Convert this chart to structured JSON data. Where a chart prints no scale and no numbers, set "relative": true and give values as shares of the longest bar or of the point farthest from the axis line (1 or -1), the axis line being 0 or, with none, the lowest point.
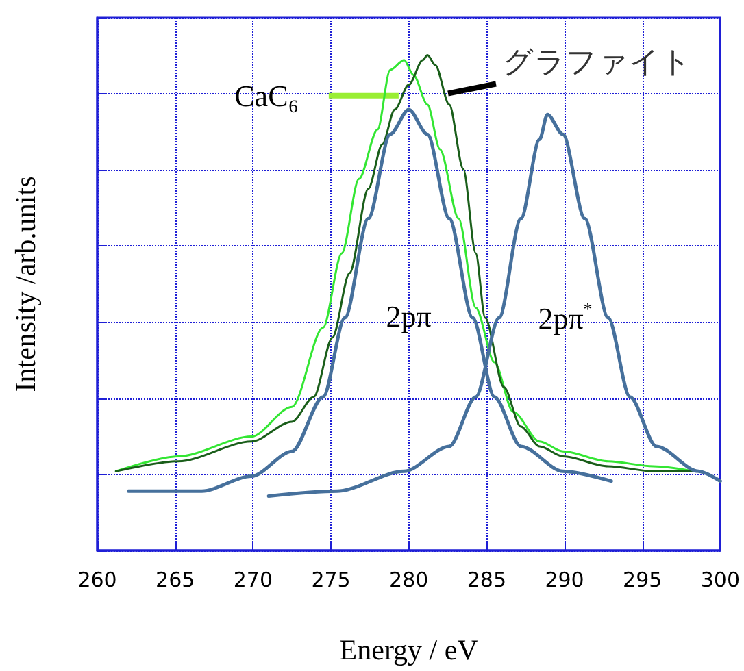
{
  "chart_data": {
    "type": "line",
    "xlabel": "Energy / eV",
    "ylabel": "Intensity /arb.units",
    "relative": true,
    "xlim": [
      260,
      300
    ],
    "xticks": [
      260,
      265,
      270,
      275,
      280,
      285,
      290,
      295,
      300
    ],
    "grid": true,
    "legend": false,
    "marker": "none",
    "series": [
      {
        "name": "CaC₆",
        "color": "#33e633",
        "x": [
          261.2,
          265.2,
          269.9,
          272.5,
          274.5,
          275.7,
          276.8,
          278.0,
          278.8,
          279.7,
          280.3,
          281.2,
          282.0,
          283.2,
          284.3,
          285.5,
          286.7,
          288.4,
          289.9,
          292.8,
          295.7,
          298.3
        ],
        "values": [
          0.16,
          0.19,
          0.23,
          0.29,
          0.45,
          0.6,
          0.75,
          0.85,
          0.97,
          0.99,
          0.96,
          0.9,
          0.81,
          0.67,
          0.49,
          0.38,
          0.28,
          0.22,
          0.2,
          0.18,
          0.17,
          0.16
        ]
      },
      {
        "name": "グラファイト",
        "color": "#1a5e1a",
        "x": [
          261.2,
          265.2,
          269.9,
          272.5,
          273.9,
          275.1,
          276.2,
          277.4,
          278.3,
          279.1,
          280.0,
          280.9,
          281.2,
          281.7,
          282.6,
          283.5,
          284.3,
          284.9,
          286.1,
          287.2,
          288.4,
          289.9,
          292.8,
          295.7,
          298.3
        ],
        "values": [
          0.16,
          0.18,
          0.22,
          0.26,
          0.31,
          0.43,
          0.56,
          0.73,
          0.82,
          0.89,
          0.94,
          0.99,
          1,
          0.98,
          0.9,
          0.77,
          0.6,
          0.47,
          0.33,
          0.25,
          0.21,
          0.19,
          0.17,
          0.16,
          0.16
        ]
      },
      {
        "name": "2pπ",
        "color": "#46709c",
        "x": [
          262.0,
          266.7,
          269.9,
          272.5,
          274.5,
          275.9,
          277.4,
          278.8,
          280.0,
          281.2,
          282.6,
          284.1,
          285.5,
          287.2,
          289.9,
          293.0
        ],
        "values": [
          0.12,
          0.12,
          0.15,
          0.2,
          0.31,
          0.47,
          0.67,
          0.84,
          0.89,
          0.84,
          0.67,
          0.47,
          0.31,
          0.21,
          0.16,
          0.14
        ]
      },
      {
        "name": "2pπ$^{*}$",
        "color": "#46709c",
        "x": [
          271.0,
          275.4,
          279.7,
          282.6,
          284.3,
          285.8,
          287.2,
          288.4,
          288.9,
          289.9,
          291.3,
          292.8,
          294.2,
          295.9,
          298.6,
          300.0
        ],
        "values": [
          0.11,
          0.12,
          0.16,
          0.21,
          0.31,
          0.47,
          0.67,
          0.83,
          0.88,
          0.84,
          0.67,
          0.47,
          0.31,
          0.21,
          0.16,
          0.14
        ]
      }
    ]
  }
}
